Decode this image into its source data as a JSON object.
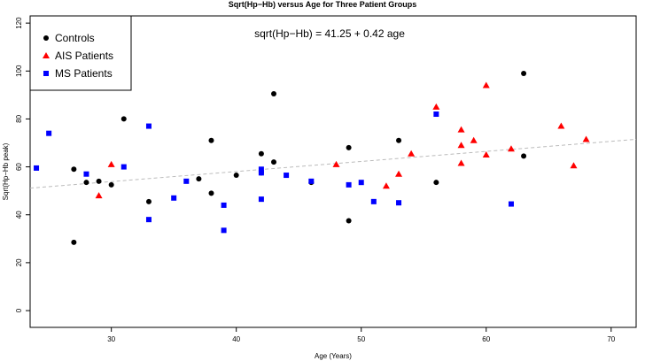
{
  "chart_data": {
    "type": "scatter",
    "title": "Sqrt(Hp−Hb) versus Age for Three Patient Groups",
    "xlabel": "Age (Years)",
    "ylabel": "Sqrt(Hp−Hb peak)",
    "xlim": [
      23.5,
      72
    ],
    "ylim": [
      -7,
      123
    ],
    "x_ticks": [
      30,
      40,
      50,
      60,
      70
    ],
    "y_ticks": [
      0,
      20,
      40,
      60,
      80,
      100,
      120
    ],
    "legend_position": "top-left",
    "annotation": "sqrt(Hp−Hb) = 41.25 + 0.42 age",
    "trend_line": {
      "intercept": 41.25,
      "slope": 0.42,
      "style": "dashed",
      "color": "#bbbbbb"
    },
    "series": [
      {
        "name": "Controls",
        "marker": "circle",
        "color": "#000000",
        "points": [
          [
            27,
            28.5
          ],
          [
            27,
            59
          ],
          [
            28,
            53.5
          ],
          [
            29,
            54
          ],
          [
            30,
            52.5
          ],
          [
            31,
            80
          ],
          [
            33,
            45.5
          ],
          [
            37,
            55
          ],
          [
            38,
            71
          ],
          [
            38,
            49
          ],
          [
            40,
            56.5
          ],
          [
            42,
            65.5
          ],
          [
            42,
            57.5
          ],
          [
            43,
            90.5
          ],
          [
            43,
            62
          ],
          [
            46,
            53.5
          ],
          [
            49,
            68
          ],
          [
            49,
            37.5
          ],
          [
            53,
            71
          ],
          [
            56,
            53.5
          ],
          [
            63,
            99
          ],
          [
            63,
            64.5
          ]
        ]
      },
      {
        "name": "AIS Patients",
        "marker": "triangle",
        "color": "#ff0000",
        "points": [
          [
            29,
            48
          ],
          [
            30,
            61
          ],
          [
            48,
            61
          ],
          [
            52,
            52
          ],
          [
            53,
            57
          ],
          [
            54,
            65.5
          ],
          [
            56,
            85
          ],
          [
            58,
            75.5
          ],
          [
            58,
            69
          ],
          [
            58,
            61.5
          ],
          [
            59,
            71
          ],
          [
            60,
            94
          ],
          [
            60,
            65
          ],
          [
            62,
            67.5
          ],
          [
            66,
            77
          ],
          [
            67,
            60.5
          ],
          [
            68,
            71.5
          ]
        ]
      },
      {
        "name": "MS Patients",
        "marker": "square",
        "color": "#0000ff",
        "points": [
          [
            24,
            59.5
          ],
          [
            25,
            74
          ],
          [
            28,
            57
          ],
          [
            31,
            60
          ],
          [
            33,
            77
          ],
          [
            33,
            38
          ],
          [
            35,
            47
          ],
          [
            36,
            54
          ],
          [
            39,
            33.5
          ],
          [
            39,
            44
          ],
          [
            42,
            57.5
          ],
          [
            42,
            59
          ],
          [
            42,
            46.5
          ],
          [
            44,
            56.5
          ],
          [
            46,
            54
          ],
          [
            49,
            52.5
          ],
          [
            50,
            53.5
          ],
          [
            51,
            45.5
          ],
          [
            53,
            45
          ],
          [
            56,
            82
          ],
          [
            62,
            44.5
          ]
        ]
      }
    ]
  }
}
